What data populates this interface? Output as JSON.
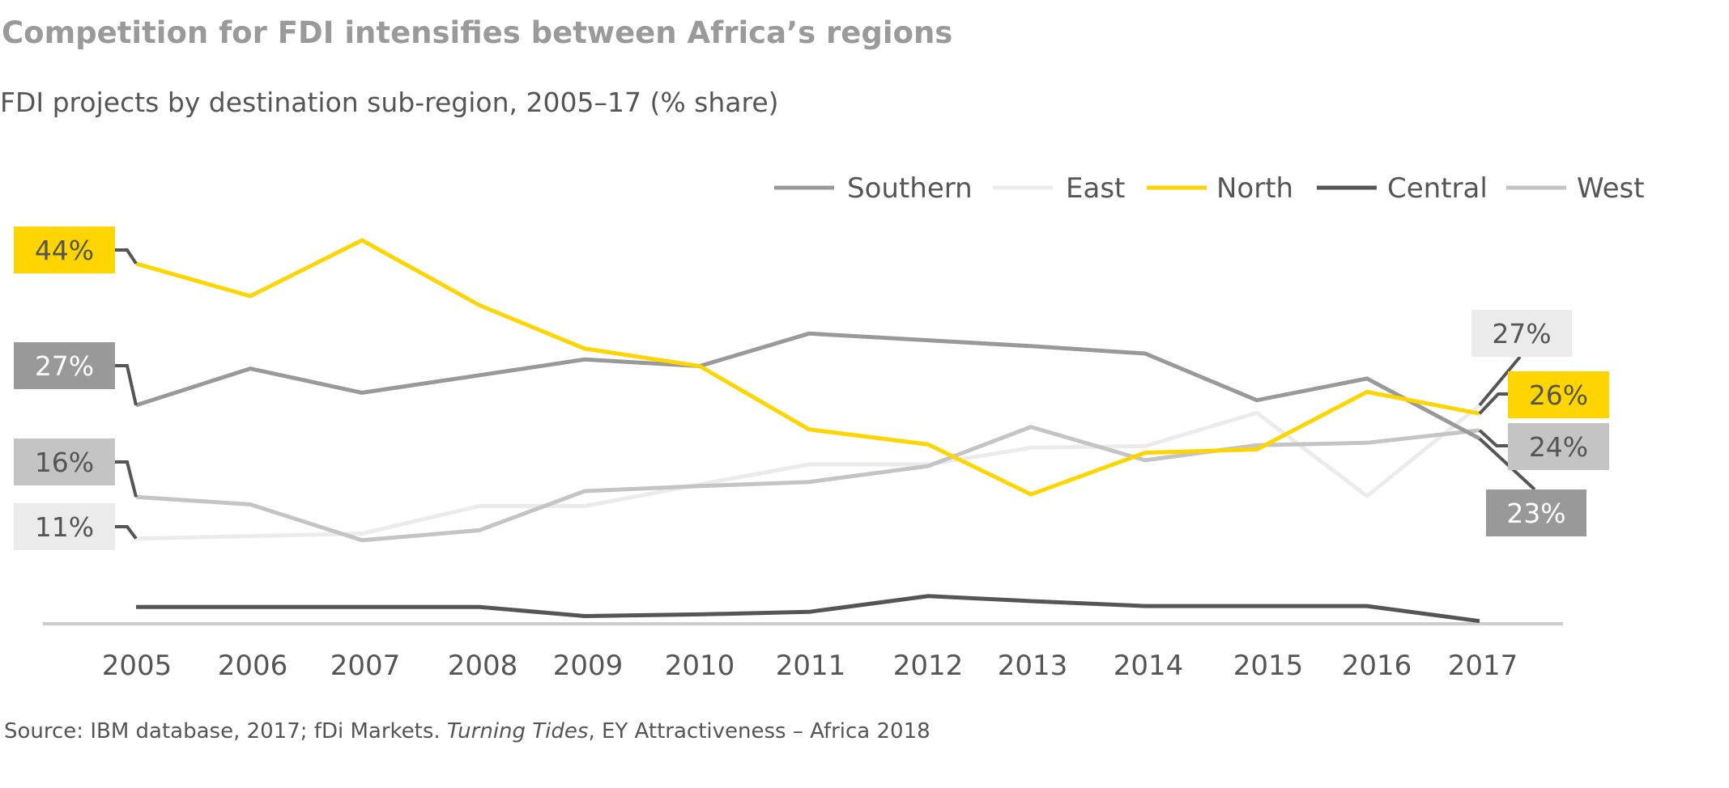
{
  "header": {
    "title": "Competition for FDI intensifies between Africa’s regions",
    "subtitle": "FDI projects by destination sub-region, 2005–17 (% share)"
  },
  "footer": {
    "source_prefix": "Source: IBM database, 2017; fDi Markets. ",
    "source_italic": "Turning Tides",
    "source_suffix": ", EY Attractiveness – Africa 2018"
  },
  "chart_data": {
    "type": "line",
    "title": "Competition for FDI intensifies between Africa’s regions",
    "subtitle": "FDI projects by destination sub-region, 2005–17 (% share)",
    "xlabel": "",
    "ylabel": "% share",
    "x": [
      "2005",
      "2006",
      "2007",
      "2008",
      "2009",
      "2010",
      "2011",
      "2012",
      "2013",
      "2014",
      "2015",
      "2016",
      "2017"
    ],
    "ylim": [
      0,
      47
    ],
    "grid": false,
    "legend_position": "top-right",
    "series": [
      {
        "name": "Southern",
        "color": "#999999",
        "label_text": "white",
        "start_label": "27%",
        "end_label": "23%",
        "values": [
          27,
          31.4,
          28.5,
          30.6,
          32.5,
          31.7,
          35.6,
          34.8,
          34.1,
          33.2,
          27.6,
          30.2,
          23
        ]
      },
      {
        "name": "East",
        "color": "#EBEBEB",
        "label_text": "dark",
        "start_label": "11%",
        "end_label": "27%",
        "values": [
          11,
          11.3,
          11.6,
          14.9,
          14.9,
          17.5,
          19.9,
          19.9,
          21.9,
          22.1,
          26.1,
          16.1,
          27
        ]
      },
      {
        "name": "North",
        "color": "#FFD500",
        "label_text": "dark",
        "start_label": "44%",
        "end_label": "26%",
        "values": [
          44,
          40.1,
          46.8,
          39.0,
          33.8,
          31.7,
          24.1,
          22.3,
          16.3,
          21.3,
          21.7,
          28.6,
          26
        ]
      },
      {
        "name": "Central",
        "color": "#555555",
        "label_text": "white",
        "start_label": null,
        "end_label": null,
        "values": [
          2.8,
          2.8,
          2.8,
          2.8,
          1.7,
          1.9,
          2.2,
          4.1,
          3.5,
          2.9,
          2.9,
          2.9,
          1.1
        ]
      },
      {
        "name": "West",
        "color": "#C4C4C4",
        "label_text": "dark",
        "start_label": "16%",
        "end_label": "24%",
        "values": [
          16,
          15.1,
          10.8,
          12.0,
          16.7,
          17.3,
          17.8,
          19.7,
          24.4,
          20.4,
          22.2,
          22.5,
          24
        ]
      }
    ],
    "annotations": [
      "44%",
      "27%",
      "16%",
      "11%",
      "27%",
      "26%",
      "24%",
      "23%"
    ],
    "source": "Source: IBM database, 2017; fDi Markets. Turning Tides, EY Attractiveness – Africa 2018"
  },
  "colors": {
    "connector": "#555555",
    "axis": "#CCCCCC",
    "text_dark": "#555555",
    "title": "#9A9A9A"
  }
}
